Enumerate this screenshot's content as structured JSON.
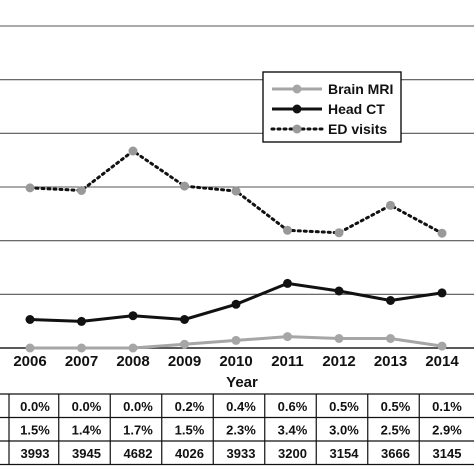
{
  "chart_data": {
    "type": "line",
    "xlabel": "Year",
    "ylabel": "",
    "categories": [
      "2006",
      "2007",
      "2008",
      "2009",
      "2010",
      "2011",
      "2012",
      "2013",
      "2014"
    ],
    "ylim": [
      0,
      6.2
    ],
    "grid": "horizontal",
    "legend_position": "top-right",
    "series": [
      {
        "name": "Brain MRI",
        "values": [
          0.0,
          0.0,
          0.0,
          0.2,
          0.4,
          0.6,
          0.5,
          0.5,
          0.1
        ],
        "color": "#a6a6a6",
        "style": "solid"
      },
      {
        "name": "Head CT",
        "values": [
          1.5,
          1.4,
          1.7,
          1.5,
          2.3,
          3.4,
          3.0,
          2.5,
          2.9
        ],
        "color": "#111111",
        "style": "solid"
      },
      {
        "name": "ED visits",
        "values": [
          3993,
          3945,
          4682,
          4026,
          3933,
          3200,
          3154,
          3666,
          3145
        ],
        "color": "#111111",
        "style": "dotted"
      }
    ],
    "table": {
      "rows": [
        [
          "0.0%",
          "0.0%",
          "0.0%",
          "0.2%",
          "0.4%",
          "0.6%",
          "0.5%",
          "0.5%",
          "0.1%"
        ],
        [
          "1.5%",
          "1.4%",
          "1.7%",
          "1.5%",
          "2.3%",
          "3.4%",
          "3.0%",
          "2.5%",
          "2.9%"
        ],
        [
          "3993",
          "3945",
          "4682",
          "4026",
          "3933",
          "3200",
          "3154",
          "3666",
          "3145"
        ]
      ]
    }
  }
}
